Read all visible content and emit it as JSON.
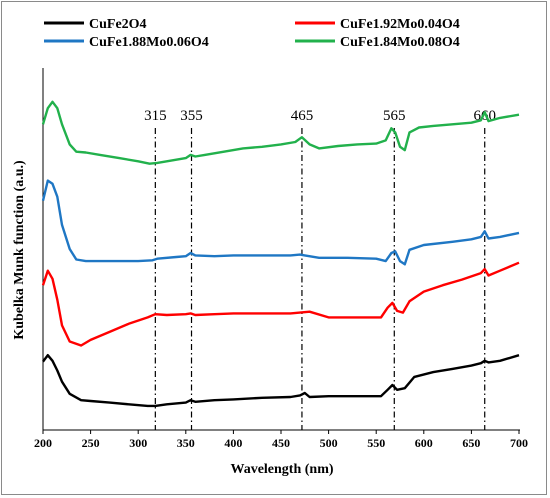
{
  "chart_data": {
    "type": "line",
    "title": "",
    "xlabel": "Wavelength (nm)",
    "ylabel": "Kubelka Munk function (a.u.)",
    "xlim": [
      200,
      700
    ],
    "xticks": [
      200,
      250,
      300,
      350,
      400,
      450,
      500,
      550,
      600,
      650,
      700
    ],
    "yticks_shown": false,
    "grid": false,
    "legend_position": "top",
    "colors": {
      "CuFe2O4": "#000000",
      "CuFe1.92Mo0.04O4": "#ff0000",
      "CuFe1.88Mo0.06O4": "#1f77c4",
      "CuFe1.84Mo0.08O4": "#22b14c"
    },
    "legend": [
      {
        "name": "CuFe2O4",
        "color": "#000000"
      },
      {
        "name": "CuFe1.92Mo0.04O4",
        "color": "#ff0000"
      },
      {
        "name": "CuFe1.88Mo0.06O4",
        "color": "#1f77c4"
      },
      {
        "name": "CuFe1.84Mo0.08O4",
        "color": "#22b14c"
      }
    ],
    "annotations": [
      {
        "label": "315",
        "x": 318
      },
      {
        "label": "355",
        "x": 356
      },
      {
        "label": "465",
        "x": 472
      },
      {
        "label": "565",
        "x": 569
      },
      {
        "label": "660",
        "x": 664
      }
    ],
    "series": [
      {
        "name": "CuFe1.84Mo0.08O4",
        "color": "#22b14c",
        "x": [
          200,
          205,
          210,
          215,
          220,
          228,
          235,
          245,
          260,
          280,
          300,
          312,
          320,
          330,
          340,
          350,
          355,
          360,
          370,
          390,
          410,
          430,
          450,
          465,
          472,
          480,
          490,
          510,
          530,
          550,
          560,
          566,
          570,
          575,
          580,
          585,
          595,
          610,
          630,
          650,
          660,
          664,
          668,
          680,
          700
        ],
        "y": [
          3.8,
          4.0,
          4.08,
          4.0,
          3.8,
          3.55,
          3.46,
          3.45,
          3.42,
          3.38,
          3.34,
          3.31,
          3.32,
          3.34,
          3.36,
          3.38,
          3.42,
          3.4,
          3.42,
          3.46,
          3.5,
          3.52,
          3.55,
          3.58,
          3.64,
          3.55,
          3.5,
          3.53,
          3.55,
          3.56,
          3.6,
          3.75,
          3.7,
          3.52,
          3.48,
          3.7,
          3.76,
          3.78,
          3.8,
          3.82,
          3.85,
          3.95,
          3.84,
          3.88,
          3.92
        ]
      },
      {
        "name": "CuFe1.88Mo0.06O4",
        "color": "#1f77c4",
        "x": [
          200,
          205,
          210,
          215,
          220,
          228,
          235,
          245,
          260,
          280,
          300,
          315,
          320,
          340,
          350,
          355,
          360,
          380,
          400,
          430,
          460,
          470,
          475,
          490,
          520,
          550,
          560,
          566,
          570,
          575,
          580,
          585,
          600,
          630,
          650,
          660,
          664,
          668,
          680,
          700
        ],
        "y": [
          2.85,
          3.1,
          3.06,
          2.9,
          2.55,
          2.25,
          2.12,
          2.1,
          2.1,
          2.1,
          2.1,
          2.11,
          2.13,
          2.15,
          2.16,
          2.2,
          2.17,
          2.16,
          2.17,
          2.17,
          2.17,
          2.18,
          2.17,
          2.14,
          2.14,
          2.13,
          2.1,
          2.2,
          2.22,
          2.1,
          2.06,
          2.24,
          2.3,
          2.34,
          2.37,
          2.4,
          2.47,
          2.38,
          2.4,
          2.45
        ]
      },
      {
        "name": "CuFe1.92Mo0.04O4",
        "color": "#ff0000",
        "x": [
          200,
          205,
          210,
          215,
          220,
          228,
          240,
          250,
          270,
          290,
          310,
          318,
          330,
          350,
          355,
          360,
          380,
          400,
          430,
          460,
          470,
          480,
          500,
          530,
          555,
          562,
          567,
          572,
          578,
          585,
          600,
          620,
          640,
          660,
          664,
          668,
          680,
          700
        ],
        "y": [
          1.8,
          1.98,
          1.88,
          1.62,
          1.3,
          1.1,
          1.05,
          1.12,
          1.22,
          1.32,
          1.4,
          1.44,
          1.43,
          1.44,
          1.45,
          1.43,
          1.44,
          1.45,
          1.45,
          1.45,
          1.46,
          1.47,
          1.4,
          1.4,
          1.4,
          1.52,
          1.58,
          1.48,
          1.46,
          1.6,
          1.72,
          1.8,
          1.87,
          1.95,
          2.0,
          1.92,
          1.98,
          2.08
        ]
      },
      {
        "name": "CuFe2O4",
        "color": "#000000",
        "x": [
          200,
          205,
          210,
          215,
          220,
          228,
          240,
          250,
          270,
          290,
          310,
          318,
          330,
          350,
          355,
          360,
          380,
          400,
          430,
          460,
          470,
          475,
          480,
          500,
          530,
          555,
          562,
          567,
          572,
          580,
          590,
          610,
          630,
          650,
          660,
          664,
          668,
          680,
          700
        ],
        "y": [
          0.85,
          0.93,
          0.86,
          0.74,
          0.6,
          0.45,
          0.37,
          0.36,
          0.34,
          0.32,
          0.3,
          0.3,
          0.32,
          0.34,
          0.37,
          0.35,
          0.37,
          0.38,
          0.4,
          0.41,
          0.43,
          0.46,
          0.41,
          0.42,
          0.42,
          0.42,
          0.5,
          0.56,
          0.5,
          0.52,
          0.66,
          0.72,
          0.76,
          0.8,
          0.83,
          0.86,
          0.84,
          0.86,
          0.93
        ]
      }
    ]
  }
}
